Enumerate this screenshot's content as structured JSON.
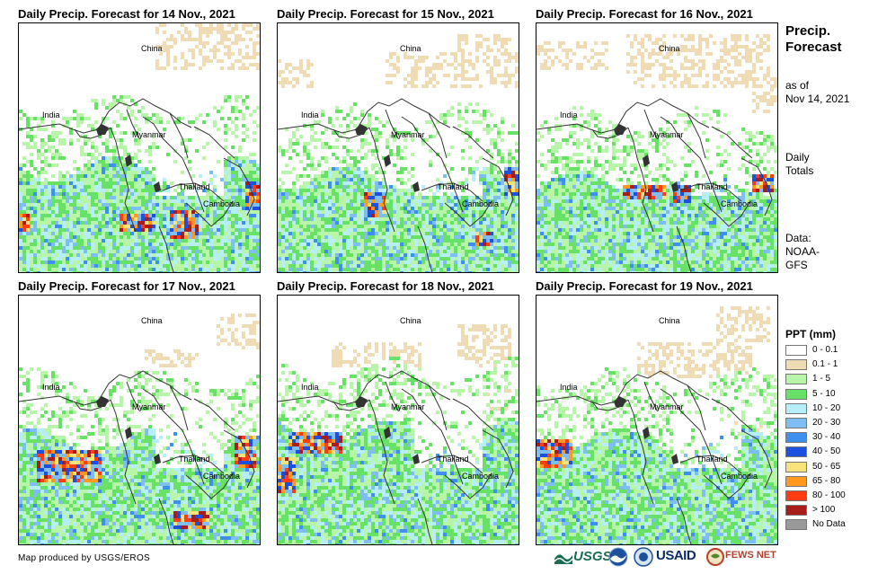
{
  "panels": [
    {
      "title": "Daily Precip. Forecast for 14 Nov., 2021"
    },
    {
      "title": "Daily Precip. Forecast for 15 Nov., 2021"
    },
    {
      "title": "Daily Precip. Forecast for 16 Nov., 2021"
    },
    {
      "title": "Daily Precip. Forecast for 17 Nov., 2021"
    },
    {
      "title": "Daily Precip. Forecast for 18 Nov., 2021"
    },
    {
      "title": "Daily Precip. Forecast for 19 Nov., 2021"
    }
  ],
  "map_labels": {
    "china": "China",
    "india": "India",
    "myanmar": "Myanmar",
    "thailand": "Thailand",
    "cambodia": "Cambodia"
  },
  "side": {
    "title_line1": "Precip.",
    "title_line2": "Forecast",
    "asof_line1": "as of",
    "asof_line2": "Nov 14, 2021",
    "totals_line1": "Daily",
    "totals_line2": "Totals",
    "data_line1": "Data:",
    "data_line2": "NOAA-",
    "data_line3": "GFS"
  },
  "legend": {
    "title": "PPT (mm)",
    "items": [
      {
        "label": "0 - 0.1",
        "color": "#ffffff"
      },
      {
        "label": "0.1 - 1",
        "color": "#efdcb4"
      },
      {
        "label": "1 - 5",
        "color": "#b7f5a8"
      },
      {
        "label": "5 - 10",
        "color": "#67e267"
      },
      {
        "label": "10 - 20",
        "color": "#b6eefa"
      },
      {
        "label": "20 - 30",
        "color": "#7fbdf5"
      },
      {
        "label": "30 - 40",
        "color": "#3f8ff0"
      },
      {
        "label": "40 - 50",
        "color": "#1e50e0"
      },
      {
        "label": "50 - 65",
        "color": "#f8e27a"
      },
      {
        "label": "65 - 80",
        "color": "#ff9a1e"
      },
      {
        "label": "80 - 100",
        "color": "#ff3c14"
      },
      {
        "label": "> 100",
        "color": "#a81c1c"
      },
      {
        "label": "No Data",
        "color": "#999999"
      }
    ]
  },
  "footer": {
    "credit": "Map produced by USGS/EROS",
    "usgs": "USGS",
    "usaid": "USAID",
    "fewsnet": "FEWS NET"
  }
}
